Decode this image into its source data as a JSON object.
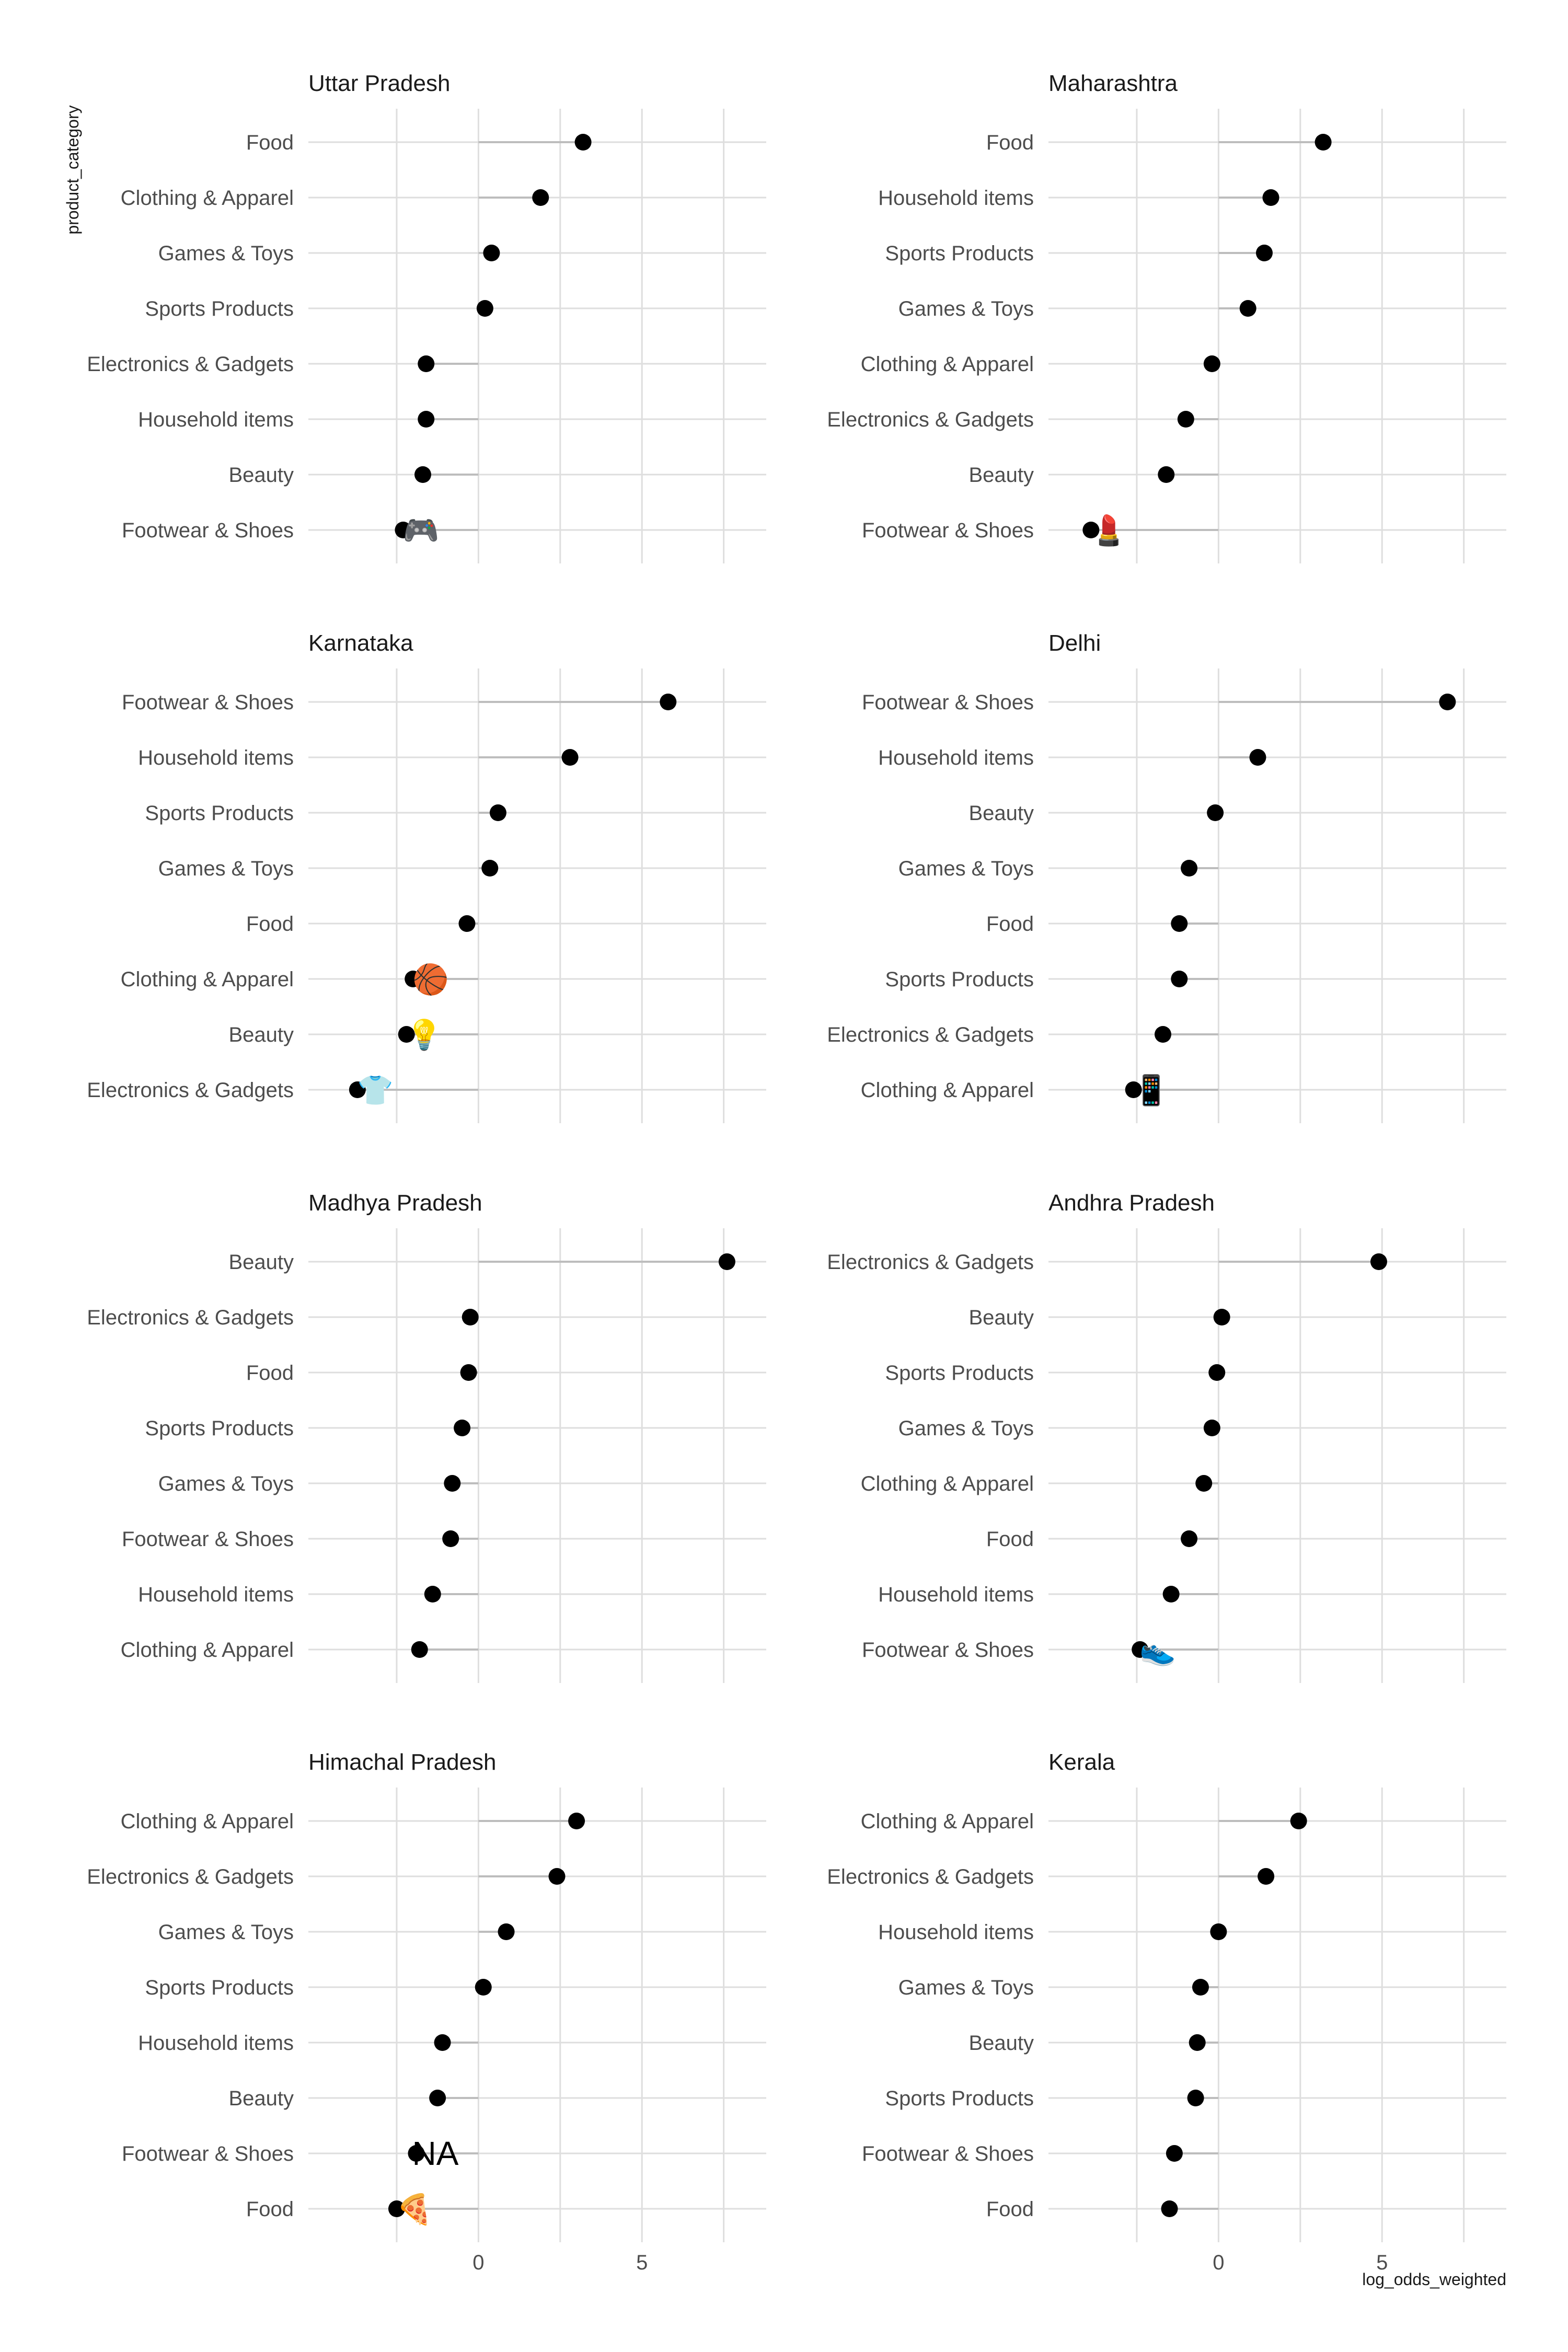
{
  "chart_data": {
    "type": "lollipop",
    "layout": "faceted 4x2",
    "xlabel": "log_odds_weighted",
    "ylabel": "product_category",
    "xlim": [
      -5.2,
      8.8
    ],
    "x_ticks": [
      0,
      5
    ],
    "grid": true,
    "legend": "none",
    "colors": {
      "point": "#000000",
      "stem": "#bdbdbd",
      "grid": "#dedede"
    },
    "panels": [
      {
        "title": "Uttar Pradesh",
        "categories": [
          "Food",
          "Clothing & Apparel",
          "Games & Toys",
          "Sports Products",
          "Electronics & Gadgets",
          "Household items",
          "Beauty",
          "Footwear & Shoes"
        ],
        "values": [
          3.2,
          1.9,
          0.4,
          0.2,
          -1.6,
          -1.6,
          -1.7,
          -2.3
        ],
        "annotation": {
          "icon": "game-controller-icon",
          "glyph": "🎮",
          "category": "Footwear & Shoes"
        }
      },
      {
        "title": "Maharashtra",
        "categories": [
          "Food",
          "Household items",
          "Sports Products",
          "Games & Toys",
          "Clothing & Apparel",
          "Electronics & Gadgets",
          "Beauty",
          "Footwear & Shoes"
        ],
        "values": [
          3.2,
          1.6,
          1.4,
          0.9,
          -0.2,
          -1.0,
          -1.6,
          -3.9
        ],
        "annotation": {
          "icon": "lipstick-icon",
          "glyph": "💄",
          "category": "Footwear & Shoes"
        }
      },
      {
        "title": "Karnataka",
        "categories": [
          "Footwear & Shoes",
          "Household items",
          "Sports Products",
          "Games & Toys",
          "Food",
          "Clothing & Apparel",
          "Beauty",
          "Electronics & Gadgets"
        ],
        "values": [
          5.8,
          2.8,
          0.6,
          0.35,
          -0.35,
          -2.0,
          -2.2,
          -3.7
        ],
        "annotation": [
          {
            "icon": "basketball-icon",
            "glyph": "🏀",
            "category": "Clothing & Apparel"
          },
          {
            "icon": "light-bulb-icon",
            "glyph": "💡",
            "category": "Beauty"
          },
          {
            "icon": "t-shirt-icon",
            "glyph": "👕",
            "category": "Electronics & Gadgets"
          }
        ]
      },
      {
        "title": "Delhi",
        "categories": [
          "Footwear & Shoes",
          "Household items",
          "Beauty",
          "Games & Toys",
          "Food",
          "Sports Products",
          "Electronics & Gadgets",
          "Clothing & Apparel"
        ],
        "values": [
          7.0,
          1.2,
          -0.1,
          -0.9,
          -1.2,
          -1.2,
          -1.7,
          -2.6
        ],
        "annotation": {
          "icon": "mobile-phone-icon",
          "glyph": "📱",
          "category": "Clothing & Apparel"
        }
      },
      {
        "title": "Madhya Pradesh",
        "categories": [
          "Beauty",
          "Electronics & Gadgets",
          "Food",
          "Sports Products",
          "Games & Toys",
          "Footwear & Shoes",
          "Household items",
          "Clothing & Apparel"
        ],
        "values": [
          7.6,
          -0.25,
          -0.3,
          -0.5,
          -0.8,
          -0.85,
          -1.4,
          -1.8
        ]
      },
      {
        "title": "Andhra Pradesh",
        "categories": [
          "Electronics & Gadgets",
          "Beauty",
          "Sports Products",
          "Games & Toys",
          "Clothing & Apparel",
          "Food",
          "Household items",
          "Footwear & Shoes"
        ],
        "values": [
          4.9,
          0.1,
          -0.05,
          -0.2,
          -0.45,
          -0.9,
          -1.45,
          -2.4
        ],
        "annotation": {
          "icon": "running-shoe-icon",
          "glyph": "👟",
          "category": "Footwear & Shoes"
        }
      },
      {
        "title": "Himachal Pradesh",
        "categories": [
          "Clothing & Apparel",
          "Electronics & Gadgets",
          "Games & Toys",
          "Sports Products",
          "Household items",
          "Beauty",
          "Footwear & Shoes",
          "Food"
        ],
        "values": [
          3.0,
          2.4,
          0.85,
          0.15,
          -1.1,
          -1.25,
          -1.9,
          -2.5
        ],
        "annotation": [
          {
            "text": "NA",
            "category": "Footwear & Shoes"
          },
          {
            "icon": "pizza-icon",
            "glyph": "🍕",
            "category": "Food"
          }
        ]
      },
      {
        "title": "Kerala",
        "categories": [
          "Clothing & Apparel",
          "Electronics & Gadgets",
          "Household items",
          "Games & Toys",
          "Beauty",
          "Sports Products",
          "Footwear & Shoes",
          "Food"
        ],
        "values": [
          2.45,
          1.45,
          0.0,
          -0.55,
          -0.65,
          -0.7,
          -1.35,
          -1.5
        ]
      }
    ]
  }
}
